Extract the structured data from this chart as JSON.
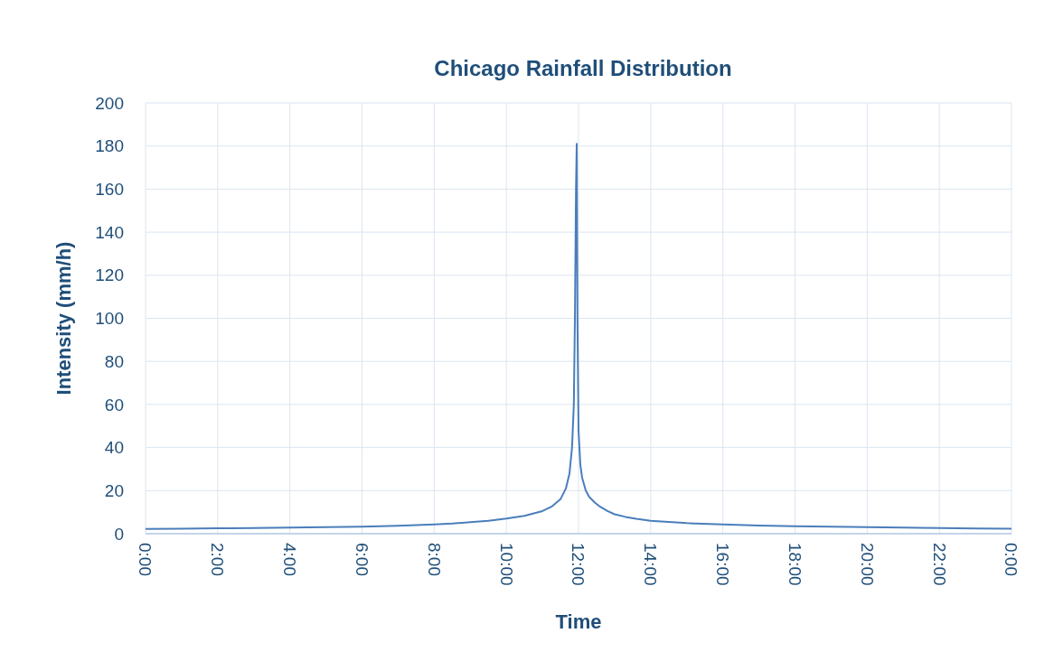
{
  "chart_data": {
    "type": "line",
    "title": "Chicago Rainfall Distribution",
    "xlabel": "Time",
    "ylabel": "Intensity (mm/h)",
    "series": [
      {
        "color": "#4a7ebb",
        "x": [
          0,
          1,
          2,
          3,
          4,
          5,
          6,
          7,
          8,
          8.5,
          9,
          9.5,
          10,
          10.5,
          11,
          11.25,
          11.5,
          11.65,
          11.75,
          11.82,
          11.87,
          11.9,
          11.93,
          11.95,
          11.97,
          12,
          12.05,
          12.1,
          12.2,
          12.3,
          12.45,
          12.6,
          12.8,
          13,
          13.3,
          13.6,
          14,
          14.5,
          15,
          16,
          17,
          18,
          19,
          20,
          21,
          22,
          23,
          24
        ],
        "values": [
          2.2,
          2.3,
          2.5,
          2.6,
          2.8,
          3,
          3.3,
          3.7,
          4.3,
          4.7,
          5.3,
          6,
          7,
          8.3,
          10.5,
          12.5,
          16,
          21,
          28,
          40,
          60,
          100,
          160,
          181,
          100,
          48,
          32,
          26,
          20,
          17,
          14.5,
          12.5,
          10.5,
          9,
          7.8,
          6.9,
          6,
          5.4,
          4.9,
          4.3,
          3.8,
          3.5,
          3.2,
          3,
          2.8,
          2.6,
          2.4,
          2.3
        ]
      }
    ],
    "xlim": [
      0,
      24
    ],
    "xticks": [
      {
        "value": 0,
        "label": "0:00"
      },
      {
        "value": 2,
        "label": "2:00"
      },
      {
        "value": 4,
        "label": "4:00"
      },
      {
        "value": 6,
        "label": "6:00"
      },
      {
        "value": 8,
        "label": "8:00"
      },
      {
        "value": 10,
        "label": "10:00"
      },
      {
        "value": 12,
        "label": "12:00"
      },
      {
        "value": 14,
        "label": "14:00"
      },
      {
        "value": 16,
        "label": "16:00"
      },
      {
        "value": 18,
        "label": "18:00"
      },
      {
        "value": 20,
        "label": "20:00"
      },
      {
        "value": 22,
        "label": "22:00"
      },
      {
        "value": 24,
        "label": "0:00"
      }
    ],
    "ylim": [
      0,
      200
    ],
    "yticks": [
      0,
      20,
      40,
      60,
      80,
      100,
      120,
      140,
      160,
      180,
      200
    ],
    "grid": true,
    "marker": "none",
    "line_style": "solid"
  }
}
